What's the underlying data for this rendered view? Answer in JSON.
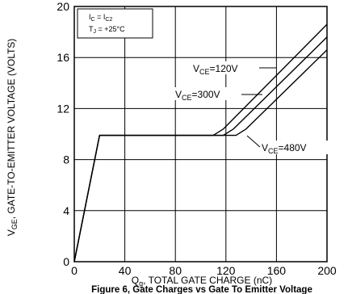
{
  "chart_data": {
    "type": "line",
    "caption": "Figure 6, Gate Charges vs Gate To Emitter Voltage",
    "xlabel": {
      "main": "Q",
      "sub": "g",
      "rest": ", TOTAL GATE CHARGE (nC)"
    },
    "ylabel": {
      "main": "V",
      "sub": "GE",
      "rest": ", GATE-TO-EMITTER VOLTAGE (VOLTS)"
    },
    "xlim": [
      0,
      200
    ],
    "ylim": [
      0,
      20
    ],
    "xticks": [
      0,
      40,
      80,
      120,
      160,
      200
    ],
    "yticks": [
      0,
      4,
      8,
      12,
      16,
      20
    ],
    "grid": true,
    "conditions": {
      "line1": {
        "a": "I",
        "a_sub": "C",
        "eq": " = I",
        "b_sub": "C2"
      },
      "line2": {
        "a": "T",
        "a_sub": "J",
        "eq": " = +25°C"
      }
    },
    "series": [
      {
        "name": {
          "main": "V",
          "sub": "CE",
          "rest": "=120V"
        },
        "x": [
          0,
          20,
          110,
          118,
          200
        ],
        "y": [
          0,
          9.9,
          9.9,
          10.4,
          18.6
        ]
      },
      {
        "name": {
          "main": "V",
          "sub": "CE",
          "rest": "=300V"
        },
        "x": [
          0,
          20,
          118,
          126,
          200
        ],
        "y": [
          0,
          9.9,
          9.9,
          10.4,
          17.6
        ]
      },
      {
        "name": {
          "main": "V",
          "sub": "CE",
          "rest": "=480V"
        },
        "x": [
          0,
          20,
          128,
          136,
          200
        ],
        "y": [
          0,
          9.9,
          9.9,
          10.4,
          16.6
        ]
      }
    ]
  }
}
